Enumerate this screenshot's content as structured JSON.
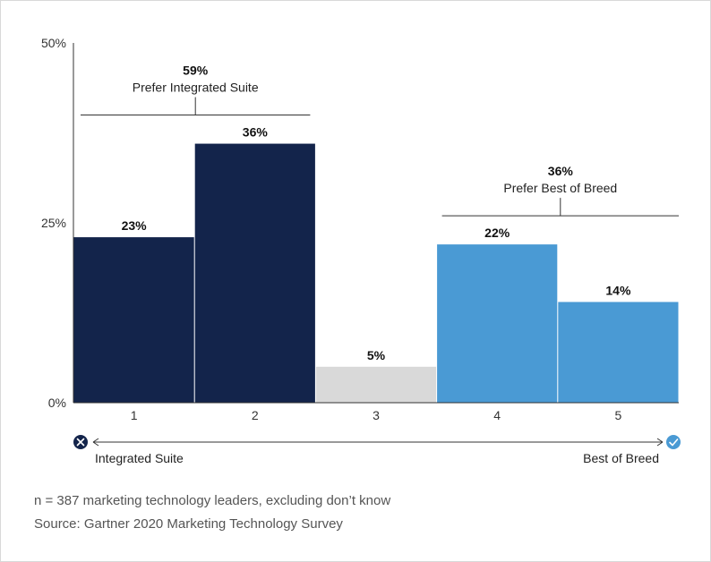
{
  "chart_data": {
    "type": "bar",
    "categories": [
      "1",
      "2",
      "3",
      "4",
      "5"
    ],
    "values": [
      23,
      36,
      5,
      22,
      14
    ],
    "data_labels": [
      "23%",
      "36%",
      "5%",
      "22%",
      "14%"
    ],
    "colors": [
      "#13244b",
      "#13244b",
      "#d9d9d9",
      "#4a9ad4",
      "#4a9ad4"
    ],
    "ylim": [
      0,
      50
    ],
    "y_ticks": [
      {
        "value": 0,
        "label": "0%"
      },
      {
        "value": 25,
        "label": "25%"
      },
      {
        "value": 50,
        "label": "50%"
      }
    ],
    "groups": [
      {
        "value_label": "59%",
        "label": "Prefer Integrated Suite",
        "from_category": 0,
        "to_category": 1
      },
      {
        "value_label": "36%",
        "label": "Prefer Best of Breed",
        "from_category": 3,
        "to_category": 4
      }
    ],
    "scale": {
      "left_label": "Integrated Suite",
      "right_label": "Best of Breed",
      "left_icon": "x-circle-icon",
      "right_icon": "check-circle-icon",
      "left_icon_color": "#13244b",
      "right_icon_color": "#4a9ad4"
    }
  },
  "footer": {
    "note": "n = 387 marketing technology leaders, excluding don’t know",
    "source": "Source: Gartner 2020 Marketing Technology Survey"
  }
}
